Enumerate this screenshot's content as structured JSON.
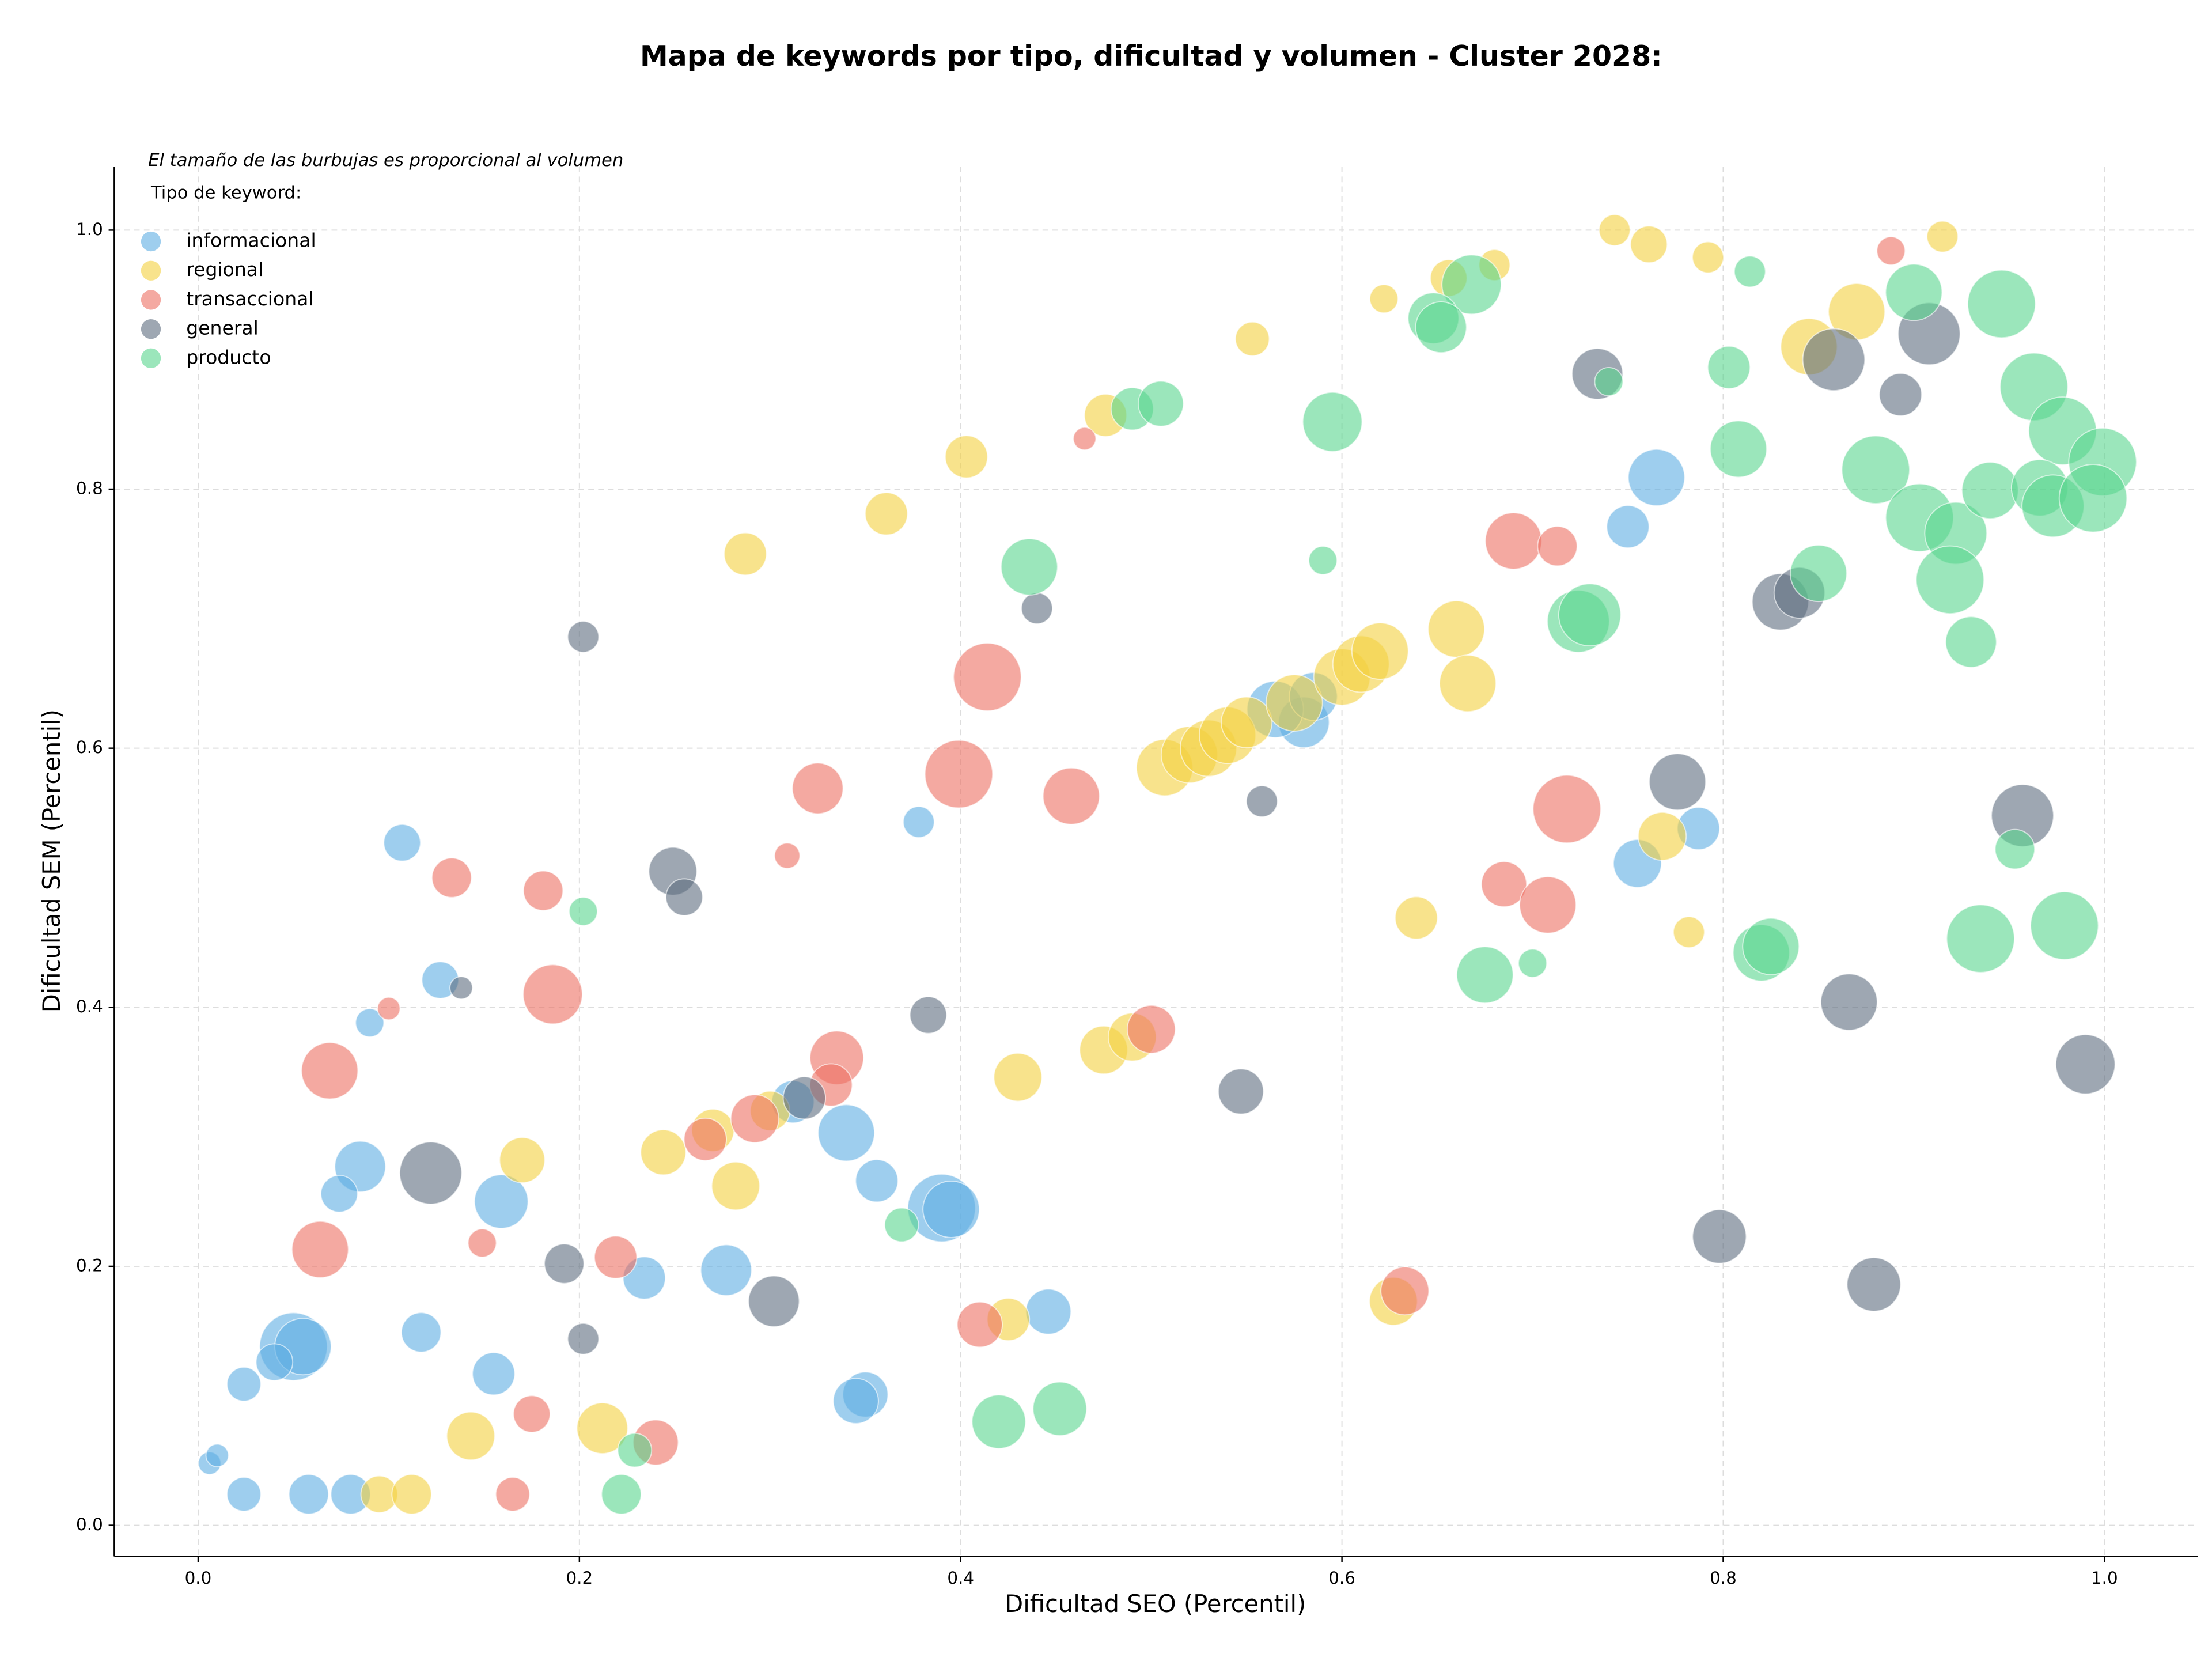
{
  "chart_data": {
    "type": "bubble",
    "title": "Mapa de keywords por tipo, dificultad y volumen - Cluster 2028:",
    "annotation": "El tamaño de las burbujas es proporcional al volumen",
    "legend_title": "Tipo de keyword:",
    "legend_position": "upper left",
    "x_label": "Dificultad SEO (Percentil)",
    "y_label": "Dificultad SEM (Percentil)",
    "xlim": [
      -0.044,
      1.049
    ],
    "ylim": [
      -0.024,
      1.049
    ],
    "xticks": [
      {
        "value": 0,
        "label": "0.0"
      },
      0.2,
      0.4,
      0.6,
      0.8,
      {
        "value": 1,
        "label": "1.0"
      }
    ],
    "yticks": [
      {
        "value": 0,
        "label": "0.0"
      },
      0.2,
      0.4,
      0.6,
      0.8,
      {
        "value": 1,
        "label": "1.0"
      }
    ],
    "grid": true,
    "series": [
      {
        "name": "informacional",
        "color": "#5dade2",
        "x": [
          0.107,
          0.127,
          0.09,
          0.085,
          0.074,
          0.159,
          0.05,
          0.055,
          0.04,
          0.024,
          0.117,
          0.155,
          0.024,
          0.058,
          0.08,
          0.006,
          0.01,
          0.234,
          0.277,
          0.34,
          0.356,
          0.39,
          0.395,
          0.378,
          0.35,
          0.345,
          0.446,
          0.312,
          0.58,
          0.565,
          0.585,
          0.75,
          0.765,
          0.755,
          0.787
        ],
        "values": [
          0.527,
          0.421,
          0.388,
          0.277,
          0.256,
          0.25,
          0.138,
          0.138,
          0.126,
          0.109,
          0.149,
          0.117,
          0.024,
          0.024,
          0.024,
          0.048,
          0.054,
          0.191,
          0.197,
          0.303,
          0.266,
          0.245,
          0.244,
          0.543,
          0.101,
          0.096,
          0.165,
          0.327,
          0.62,
          0.63,
          0.64,
          0.771,
          0.809,
          0.511,
          0.538
        ],
        "sizes": [
          169,
          169,
          100,
          324,
          169,
          361,
          576,
          400,
          169,
          144,
          196,
          225,
          144,
          196,
          196,
          64,
          64,
          225,
          324,
          400,
          225,
          576,
          400,
          121,
          256,
          256,
          256,
          225,
          324,
          400,
          289,
          225,
          400,
          289,
          225
        ]
      },
      {
        "name": "regional",
        "color": "#f4d03f",
        "x": [
          0.743,
          0.761,
          0.792,
          0.915,
          0.68,
          0.656,
          0.622,
          0.553,
          0.476,
          0.403,
          0.361,
          0.287,
          0.845,
          0.87,
          0.507,
          0.52,
          0.53,
          0.54,
          0.55,
          0.575,
          0.6,
          0.61,
          0.62,
          0.66,
          0.666,
          0.768,
          0.782,
          0.639,
          0.475,
          0.49,
          0.43,
          0.17,
          0.244,
          0.27,
          0.282,
          0.3,
          0.143,
          0.212,
          0.095,
          0.112,
          0.425,
          0.627
        ],
        "values": [
          1.0,
          0.989,
          0.979,
          0.995,
          0.973,
          0.963,
          0.947,
          0.916,
          0.857,
          0.825,
          0.781,
          0.75,
          0.91,
          0.937,
          0.585,
          0.595,
          0.6,
          0.61,
          0.62,
          0.635,
          0.655,
          0.665,
          0.675,
          0.692,
          0.65,
          0.532,
          0.458,
          0.469,
          0.367,
          0.377,
          0.346,
          0.282,
          0.288,
          0.305,
          0.262,
          0.32,
          0.069,
          0.075,
          0.024,
          0.024,
          0.159,
          0.173
        ],
        "sizes": [
          121,
          169,
          121,
          121,
          121,
          169,
          100,
          144,
          225,
          225,
          225,
          225,
          400,
          400,
          400,
          400,
          400,
          400,
          324,
          400,
          400,
          400,
          400,
          400,
          400,
          289,
          121,
          225,
          289,
          289,
          289,
          256,
          256,
          225,
          289,
          196,
          289,
          324,
          169,
          196,
          225,
          289
        ]
      },
      {
        "name": "transaccional",
        "color": "#ec7063",
        "x": [
          0.888,
          0.465,
          0.69,
          0.713,
          0.414,
          0.399,
          0.325,
          0.458,
          0.718,
          0.309,
          0.133,
          0.181,
          0.685,
          0.708,
          0.186,
          0.1,
          0.069,
          0.335,
          0.332,
          0.5,
          0.266,
          0.292,
          0.064,
          0.219,
          0.149,
          0.41,
          0.175,
          0.24,
          0.165,
          0.633
        ],
        "values": [
          0.984,
          0.839,
          0.76,
          0.756,
          0.655,
          0.58,
          0.569,
          0.563,
          0.553,
          0.517,
          0.5,
          0.49,
          0.495,
          0.479,
          0.41,
          0.399,
          0.351,
          0.361,
          0.34,
          0.383,
          0.298,
          0.314,
          0.213,
          0.207,
          0.218,
          0.155,
          0.086,
          0.064,
          0.024,
          0.181
        ],
        "sizes": [
          100,
          64,
          400,
          196,
          576,
          576,
          324,
          400,
          576,
          81,
          196,
          196,
          256,
          400,
          441,
          64,
          400,
          361,
          225,
          289,
          225,
          289,
          400,
          225,
          100,
          256,
          169,
          256,
          144,
          289
        ]
      },
      {
        "name": "general",
        "color": "#5d6d7e",
        "x": [
          0.734,
          0.858,
          0.908,
          0.893,
          0.83,
          0.84,
          0.44,
          0.202,
          0.776,
          0.957,
          0.558,
          0.249,
          0.255,
          0.138,
          0.383,
          0.866,
          0.99,
          0.547,
          0.122,
          0.192,
          0.302,
          0.798,
          0.879,
          0.202,
          0.318
        ],
        "values": [
          0.889,
          0.9,
          0.92,
          0.873,
          0.713,
          0.72,
          0.708,
          0.686,
          0.574,
          0.548,
          0.559,
          0.505,
          0.485,
          0.415,
          0.394,
          0.404,
          0.356,
          0.335,
          0.272,
          0.202,
          0.173,
          0.223,
          0.186,
          0.144,
          0.33
        ],
        "sizes": [
          324,
          484,
          484,
          225,
          400,
          324,
          121,
          121,
          400,
          484,
          121,
          289,
          169,
          64,
          169,
          400,
          441,
          256,
          484,
          196,
          324,
          361,
          361,
          121,
          225
        ]
      },
      {
        "name": "producto",
        "color": "#58d68d",
        "x": [
          0.814,
          0.9,
          0.946,
          0.668,
          0.648,
          0.652,
          0.74,
          0.803,
          0.963,
          0.49,
          0.505,
          0.595,
          0.808,
          0.978,
          0.999,
          0.88,
          0.903,
          0.922,
          0.94,
          0.966,
          0.973,
          0.994,
          0.436,
          0.59,
          0.85,
          0.919,
          0.724,
          0.73,
          0.93,
          0.202,
          0.953,
          0.979,
          0.935,
          0.82,
          0.825,
          0.675,
          0.7,
          0.369,
          0.42,
          0.452,
          0.229,
          0.222
        ],
        "values": [
          0.968,
          0.952,
          0.943,
          0.958,
          0.932,
          0.925,
          0.883,
          0.894,
          0.879,
          0.862,
          0.866,
          0.852,
          0.831,
          0.845,
          0.821,
          0.815,
          0.778,
          0.766,
          0.799,
          0.801,
          0.787,
          0.793,
          0.74,
          0.745,
          0.735,
          0.73,
          0.698,
          0.703,
          0.682,
          0.474,
          0.522,
          0.463,
          0.453,
          0.442,
          0.447,
          0.425,
          0.434,
          0.232,
          0.08,
          0.09,
          0.058,
          0.024
        ],
        "sizes": [
          121,
          400,
          576,
          441,
          324,
          324,
          100,
          225,
          576,
          225,
          256,
          441,
          400,
          576,
          576,
          576,
          576,
          484,
          400,
          400,
          484,
          576,
          400,
          100,
          400,
          576,
          484,
          484,
          324,
          100,
          196,
          576,
          576,
          400,
          400,
          400,
          100,
          144,
          361,
          361,
          144,
          196
        ]
      }
    ]
  }
}
